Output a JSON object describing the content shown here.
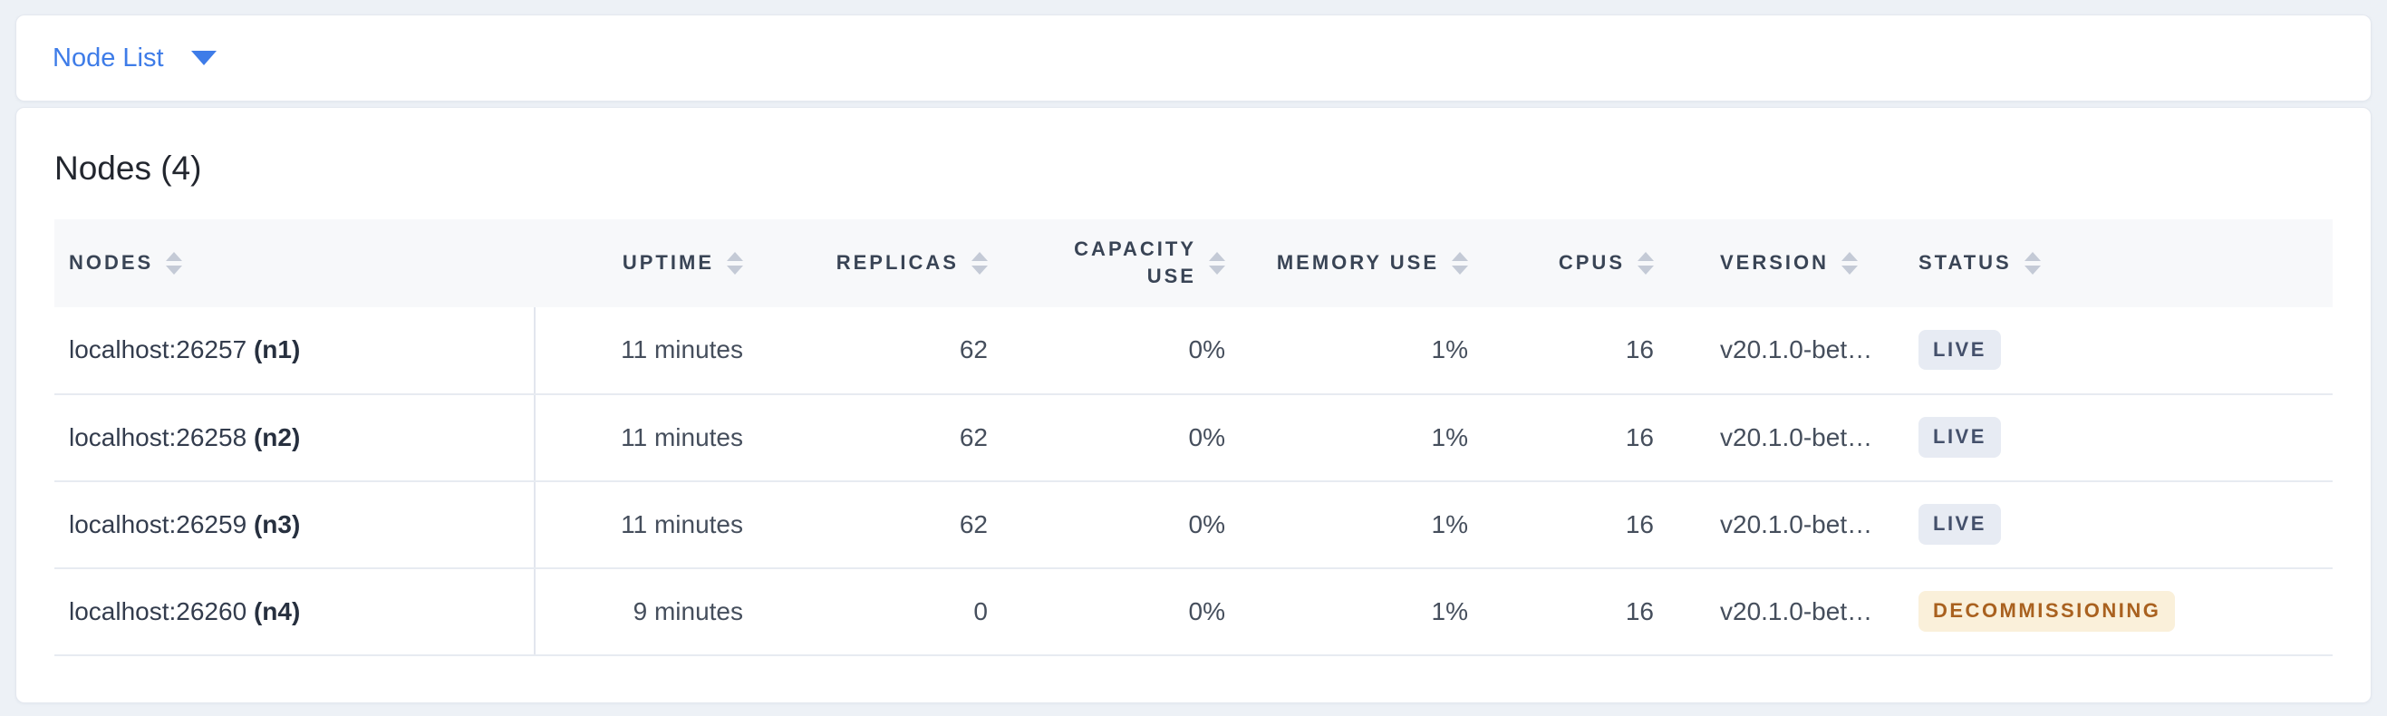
{
  "selector": {
    "label": "Node List"
  },
  "panel": {
    "title": "Nodes (4)"
  },
  "table": {
    "columns": [
      {
        "key": "nodes",
        "label": "NODES",
        "align": "left",
        "sortable": true
      },
      {
        "key": "uptime",
        "label": "UPTIME",
        "align": "right",
        "sortable": true
      },
      {
        "key": "replicas",
        "label": "REPLICAS",
        "align": "right",
        "sortable": true
      },
      {
        "key": "capacity_use",
        "label": "CAPACITY USE",
        "align": "right",
        "sortable": true
      },
      {
        "key": "memory_use",
        "label": "MEMORY USE",
        "align": "right",
        "sortable": true
      },
      {
        "key": "cpus",
        "label": "CPUS",
        "align": "right",
        "sortable": true
      },
      {
        "key": "version",
        "label": "VERSION",
        "align": "left",
        "sortable": true
      },
      {
        "key": "status",
        "label": "STATUS",
        "align": "left",
        "sortable": true
      }
    ],
    "rows": [
      {
        "address": "localhost:26257",
        "node_id": "(n1)",
        "uptime": "11 minutes",
        "replicas": "62",
        "capacity_use": "0%",
        "memory_use": "1%",
        "cpus": "16",
        "version": "v20.1.0-bet…",
        "status": "LIVE",
        "status_type": "live"
      },
      {
        "address": "localhost:26258",
        "node_id": "(n2)",
        "uptime": "11 minutes",
        "replicas": "62",
        "capacity_use": "0%",
        "memory_use": "1%",
        "cpus": "16",
        "version": "v20.1.0-bet…",
        "status": "LIVE",
        "status_type": "live"
      },
      {
        "address": "localhost:26259",
        "node_id": "(n3)",
        "uptime": "11 minutes",
        "replicas": "62",
        "capacity_use": "0%",
        "memory_use": "1%",
        "cpus": "16",
        "version": "v20.1.0-bet…",
        "status": "LIVE",
        "status_type": "live"
      },
      {
        "address": "localhost:26260",
        "node_id": "(n4)",
        "uptime": "9 minutes",
        "replicas": "0",
        "capacity_use": "0%",
        "memory_use": "1%",
        "cpus": "16",
        "version": "v20.1.0-bet…",
        "status": "DECOMMISSIONING",
        "status_type": "decommissioning"
      }
    ]
  },
  "colors": {
    "accent_blue": "#3e7ce8",
    "page_background": "#edf1f6",
    "header_band": "#f7f8fa",
    "row_border": "#e7ebf1",
    "live_badge_bg": "#e7ebf3",
    "live_badge_text": "#44506b",
    "decommissioning_badge_bg": "#faf0da",
    "decommissioning_badge_text": "#a9611f"
  }
}
